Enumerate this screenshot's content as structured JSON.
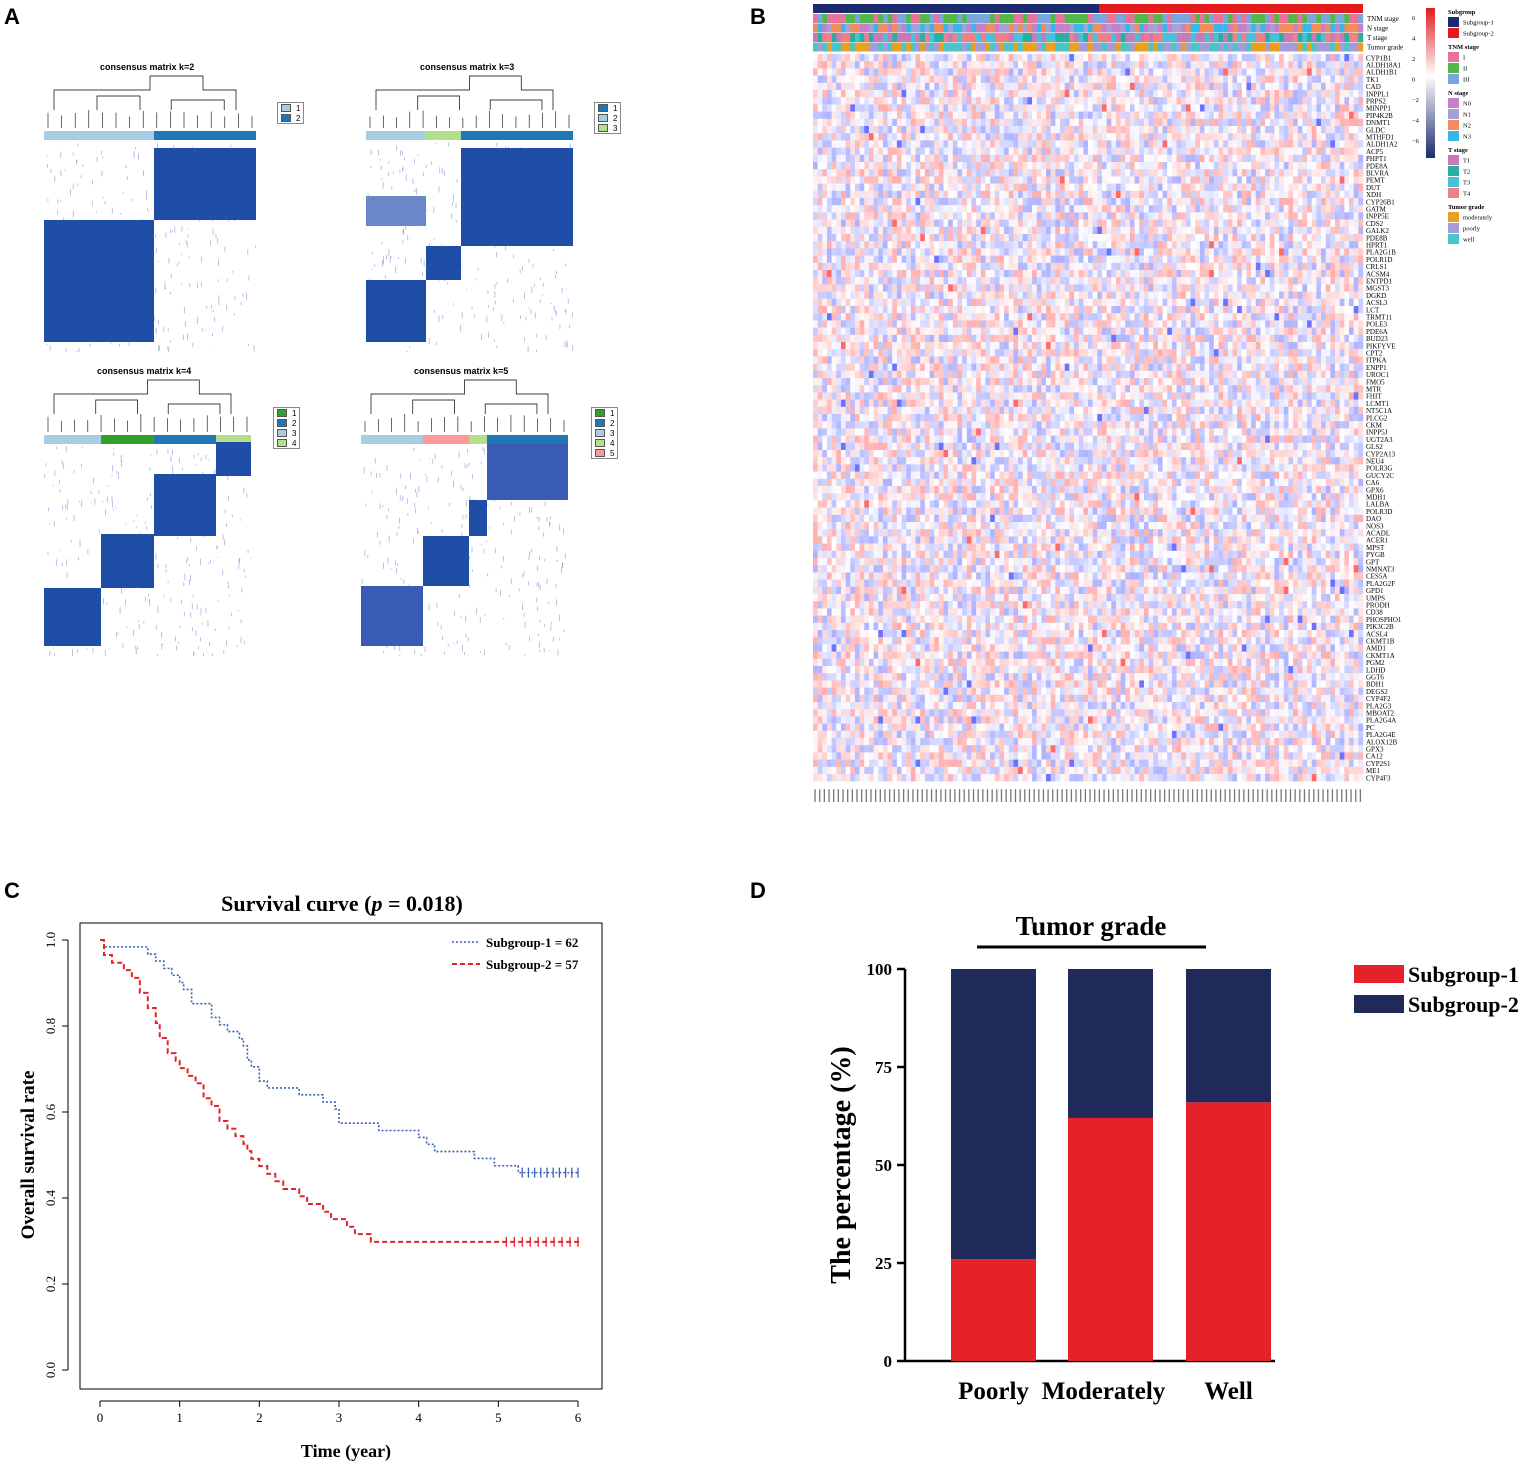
{
  "panels": {
    "a": "A",
    "b": "B",
    "c": "C",
    "d": "D"
  },
  "colors": {
    "blue_dark": "#1f4ea8",
    "c_light": "#a6cee3",
    "c_mid": "#1f78b4",
    "c_lightgreen": "#b2df8a",
    "c_green": "#33a02c",
    "c_pink": "#fb9a99",
    "sub1": "#1c2a70",
    "sub2": "#e41a1c",
    "bar_red": "#e5212a",
    "bar_navy": "#1f2a5a",
    "km_blue": "#3b5fb8",
    "km_red": "#e3232b"
  },
  "consensus": [
    {
      "title": "consensus matrix k=2",
      "legend": [
        "1",
        "2"
      ]
    },
    {
      "title": "consensus matrix k=3",
      "legend": [
        "1",
        "2",
        "3"
      ]
    },
    {
      "title": "consensus matrix k=4",
      "legend": [
        "1",
        "2",
        "3",
        "4"
      ]
    },
    {
      "title": "consensus matrix k=5",
      "legend": [
        "1",
        "2",
        "3",
        "4",
        "5"
      ]
    }
  ],
  "heatmap": {
    "annotation_rows": [
      "TNM stage",
      "N stage",
      "T stage",
      "Tumor grade"
    ],
    "genes": [
      "CYP1B1",
      "ALDH18A1",
      "ALDH1B1",
      "TK1",
      "CAD",
      "INPPL1",
      "PRPS2",
      "MINPP1",
      "PIP4K2B",
      "DNMT1",
      "GLDC",
      "MTHFD1",
      "ALDH1A2",
      "ACP5",
      "PHPT1",
      "PDE8A",
      "BLVRA",
      "PEMT",
      "DUT",
      "XDH",
      "CYP26B1",
      "GATM",
      "INPP5E",
      "CDS2",
      "GALK2",
      "PDE8B",
      "HPRT1",
      "PLA2G1B",
      "POLR1D",
      "CRLS1",
      "ACSM4",
      "ENTPD1",
      "MGST3",
      "DGKD",
      "ACSL3",
      "LCT",
      "TRMT11",
      "POLE3",
      "PDE6A",
      "BUD23",
      "PIKFYVE",
      "CPT2",
      "ITPKA",
      "ENPP1",
      "UROC1",
      "FMO5",
      "MTR",
      "FHIT",
      "LCMT1",
      "NT5C1A",
      "PLCG2",
      "CKM",
      "INPP5J",
      "UGT2A3",
      "GLS2",
      "CYP2A13",
      "NEU4",
      "POLR3G",
      "GUCY2C",
      "CA6",
      "GPX6",
      "MDH1",
      "LALBA",
      "POLR3D",
      "DAO",
      "NOS3",
      "ACADL",
      "ACER1",
      "MPST",
      "PYGB",
      "GPT",
      "NMNAT3",
      "CES5A",
      "PLA2G2F",
      "GPD1",
      "UMPS",
      "PRODH",
      "CD38",
      "PHOSPHO1",
      "PIK3C2B",
      "ACSL4",
      "CKMT1B",
      "AMD1",
      "CKMT1A",
      "PGM2",
      "LDHD",
      "GGT6",
      "BDH1",
      "DEGS2",
      "CYP4F2",
      "PLA2G3",
      "MBOAT2",
      "PLA2G4A",
      "PC",
      "PLA2G4E",
      "ALOX12B",
      "GPX3",
      "CA12",
      "CYP2S1",
      "ME1",
      "CYP4F3"
    ],
    "colorbar": {
      "title": "",
      "ticks": [
        "6",
        "4",
        "2",
        "0",
        "−2",
        "−4",
        "−6"
      ]
    },
    "legends": [
      {
        "title": "Subgroup",
        "items": [
          "Subgroup-1",
          "Subgroup-2"
        ],
        "colors": [
          "#1c2a70",
          "#e41a1c"
        ]
      },
      {
        "title": "TNM stage",
        "items": [
          "I",
          "II",
          "III"
        ],
        "colors": [
          "#e7739b",
          "#53b84a",
          "#7ba6dd"
        ]
      },
      {
        "title": "N stage",
        "items": [
          "N0",
          "N1",
          "N2",
          "N3"
        ],
        "colors": [
          "#c77fc9",
          "#a7a0d8",
          "#f28c5e",
          "#38b7e6"
        ]
      },
      {
        "title": "T stage",
        "items": [
          "T1",
          "T2",
          "T3",
          "T4"
        ],
        "colors": [
          "#c879b6",
          "#2aaea1",
          "#45c1dc",
          "#f07f86"
        ]
      },
      {
        "title": "Tumor grade",
        "items": [
          "moderately",
          "poorly",
          "well"
        ],
        "colors": [
          "#e8a023",
          "#a49bd8",
          "#4cc4c7"
        ]
      }
    ]
  },
  "chart_data": [
    {
      "type": "line",
      "title": "Survival curve (",
      "title_p": "p",
      "title_rest": " = 0.018)",
      "xlabel": "Time (year)",
      "ylabel": "Overall survival rate",
      "xlim": [
        0,
        6
      ],
      "ylim": [
        0,
        1
      ],
      "xticks": [
        "0",
        "1",
        "2",
        "3",
        "4",
        "5",
        "6"
      ],
      "yticks": [
        "0.0",
        "0.2",
        "0.4",
        "0.6",
        "0.8",
        "1.0"
      ],
      "series": [
        {
          "name": "Subgroup-1 = 62",
          "x": [
            0,
            0.05,
            0.5,
            0.6,
            0.7,
            0.8,
            0.9,
            1.0,
            1.05,
            1.15,
            1.4,
            1.5,
            1.6,
            1.75,
            1.8,
            1.85,
            1.9,
            2.0,
            2.1,
            2.5,
            2.8,
            2.95,
            3.0,
            3.5,
            4.0,
            4.1,
            4.2,
            4.5,
            4.7,
            4.85,
            4.95,
            5.05,
            5.15,
            5.25,
            6.0
          ],
          "y": [
            1.0,
            0.984,
            0.984,
            0.967,
            0.951,
            0.934,
            0.918,
            0.901,
            0.885,
            0.852,
            0.82,
            0.803,
            0.787,
            0.77,
            0.754,
            0.721,
            0.705,
            0.672,
            0.656,
            0.64,
            0.623,
            0.607,
            0.574,
            0.557,
            0.541,
            0.525,
            0.508,
            0.508,
            0.492,
            0.492,
            0.475,
            0.475,
            0.475,
            0.459,
            0.459
          ]
        },
        {
          "name": "Subgroup-2 = 57",
          "x": [
            0,
            0.05,
            0.15,
            0.3,
            0.4,
            0.5,
            0.6,
            0.7,
            0.75,
            0.85,
            0.95,
            1.0,
            1.1,
            1.2,
            1.3,
            1.4,
            1.5,
            1.6,
            1.7,
            1.8,
            1.85,
            1.9,
            2.0,
            2.1,
            2.2,
            2.3,
            2.5,
            2.6,
            2.8,
            2.9,
            3.1,
            3.2,
            3.4,
            3.8,
            6.05
          ],
          "y": [
            1.0,
            0.965,
            0.947,
            0.93,
            0.912,
            0.877,
            0.842,
            0.807,
            0.772,
            0.737,
            0.719,
            0.702,
            0.684,
            0.667,
            0.632,
            0.614,
            0.579,
            0.561,
            0.544,
            0.526,
            0.509,
            0.491,
            0.474,
            0.456,
            0.439,
            0.421,
            0.404,
            0.386,
            0.368,
            0.351,
            0.333,
            0.316,
            0.298,
            0.298,
            0.298
          ]
        }
      ]
    },
    {
      "type": "bar",
      "title": "Tumor grade",
      "ylabel": "The percentage (%)",
      "categories": [
        "Poorly",
        "Moderately",
        "Well"
      ],
      "ylim": [
        0,
        100
      ],
      "yticks": [
        "0",
        "25",
        "50",
        "75",
        "100"
      ],
      "series": [
        {
          "name": "Subgroup-1",
          "values": [
            26,
            62,
            66
          ]
        },
        {
          "name": "Subgroup-2",
          "values": [
            74,
            38,
            34
          ]
        }
      ]
    }
  ]
}
